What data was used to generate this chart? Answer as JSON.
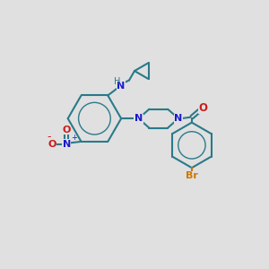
{
  "background_color": "#e0e0e0",
  "bond_color": "#2a7a8a",
  "atom_colors": {
    "N": "#1a1acc",
    "O": "#cc1a1a",
    "Br": "#cc7700",
    "H": "#2a7a8a"
  },
  "figsize": [
    3.0,
    3.0
  ],
  "dpi": 100
}
